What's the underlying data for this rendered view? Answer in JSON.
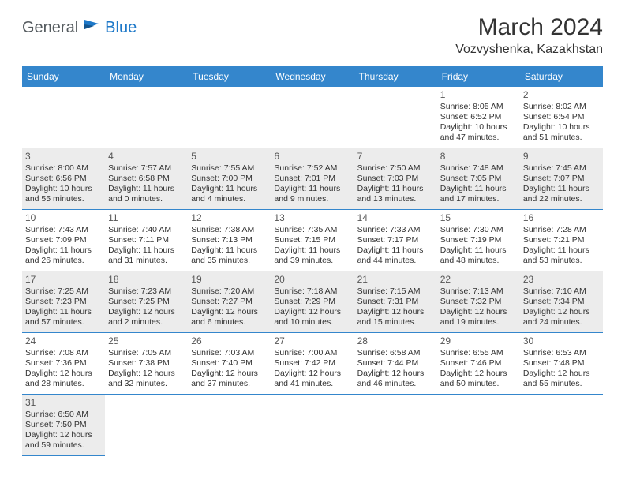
{
  "logo": {
    "general": "General",
    "blue": "Blue"
  },
  "title": "March 2024",
  "location": "Vozvyshenka, Kazakhstan",
  "colors": {
    "header_bg": "#3486cc",
    "header_fg": "#ffffff",
    "alt_row_bg": "#ececec",
    "logo_gray": "#555b5f",
    "logo_blue": "#1d78c8",
    "text": "#333333",
    "border": "#3486cc"
  },
  "weekdays": [
    "Sunday",
    "Monday",
    "Tuesday",
    "Wednesday",
    "Thursday",
    "Friday",
    "Saturday"
  ],
  "weeks": [
    [
      null,
      null,
      null,
      null,
      null,
      {
        "d": "1",
        "sr": "8:05 AM",
        "ss": "6:52 PM",
        "dl": "10 hours and 47 minutes."
      },
      {
        "d": "2",
        "sr": "8:02 AM",
        "ss": "6:54 PM",
        "dl": "10 hours and 51 minutes."
      }
    ],
    [
      {
        "d": "3",
        "sr": "8:00 AM",
        "ss": "6:56 PM",
        "dl": "10 hours and 55 minutes."
      },
      {
        "d": "4",
        "sr": "7:57 AM",
        "ss": "6:58 PM",
        "dl": "11 hours and 0 minutes."
      },
      {
        "d": "5",
        "sr": "7:55 AM",
        "ss": "7:00 PM",
        "dl": "11 hours and 4 minutes."
      },
      {
        "d": "6",
        "sr": "7:52 AM",
        "ss": "7:01 PM",
        "dl": "11 hours and 9 minutes."
      },
      {
        "d": "7",
        "sr": "7:50 AM",
        "ss": "7:03 PM",
        "dl": "11 hours and 13 minutes."
      },
      {
        "d": "8",
        "sr": "7:48 AM",
        "ss": "7:05 PM",
        "dl": "11 hours and 17 minutes."
      },
      {
        "d": "9",
        "sr": "7:45 AM",
        "ss": "7:07 PM",
        "dl": "11 hours and 22 minutes."
      }
    ],
    [
      {
        "d": "10",
        "sr": "7:43 AM",
        "ss": "7:09 PM",
        "dl": "11 hours and 26 minutes."
      },
      {
        "d": "11",
        "sr": "7:40 AM",
        "ss": "7:11 PM",
        "dl": "11 hours and 31 minutes."
      },
      {
        "d": "12",
        "sr": "7:38 AM",
        "ss": "7:13 PM",
        "dl": "11 hours and 35 minutes."
      },
      {
        "d": "13",
        "sr": "7:35 AM",
        "ss": "7:15 PM",
        "dl": "11 hours and 39 minutes."
      },
      {
        "d": "14",
        "sr": "7:33 AM",
        "ss": "7:17 PM",
        "dl": "11 hours and 44 minutes."
      },
      {
        "d": "15",
        "sr": "7:30 AM",
        "ss": "7:19 PM",
        "dl": "11 hours and 48 minutes."
      },
      {
        "d": "16",
        "sr": "7:28 AM",
        "ss": "7:21 PM",
        "dl": "11 hours and 53 minutes."
      }
    ],
    [
      {
        "d": "17",
        "sr": "7:25 AM",
        "ss": "7:23 PM",
        "dl": "11 hours and 57 minutes."
      },
      {
        "d": "18",
        "sr": "7:23 AM",
        "ss": "7:25 PM",
        "dl": "12 hours and 2 minutes."
      },
      {
        "d": "19",
        "sr": "7:20 AM",
        "ss": "7:27 PM",
        "dl": "12 hours and 6 minutes."
      },
      {
        "d": "20",
        "sr": "7:18 AM",
        "ss": "7:29 PM",
        "dl": "12 hours and 10 minutes."
      },
      {
        "d": "21",
        "sr": "7:15 AM",
        "ss": "7:31 PM",
        "dl": "12 hours and 15 minutes."
      },
      {
        "d": "22",
        "sr": "7:13 AM",
        "ss": "7:32 PM",
        "dl": "12 hours and 19 minutes."
      },
      {
        "d": "23",
        "sr": "7:10 AM",
        "ss": "7:34 PM",
        "dl": "12 hours and 24 minutes."
      }
    ],
    [
      {
        "d": "24",
        "sr": "7:08 AM",
        "ss": "7:36 PM",
        "dl": "12 hours and 28 minutes."
      },
      {
        "d": "25",
        "sr": "7:05 AM",
        "ss": "7:38 PM",
        "dl": "12 hours and 32 minutes."
      },
      {
        "d": "26",
        "sr": "7:03 AM",
        "ss": "7:40 PM",
        "dl": "12 hours and 37 minutes."
      },
      {
        "d": "27",
        "sr": "7:00 AM",
        "ss": "7:42 PM",
        "dl": "12 hours and 41 minutes."
      },
      {
        "d": "28",
        "sr": "6:58 AM",
        "ss": "7:44 PM",
        "dl": "12 hours and 46 minutes."
      },
      {
        "d": "29",
        "sr": "6:55 AM",
        "ss": "7:46 PM",
        "dl": "12 hours and 50 minutes."
      },
      {
        "d": "30",
        "sr": "6:53 AM",
        "ss": "7:48 PM",
        "dl": "12 hours and 55 minutes."
      }
    ],
    [
      {
        "d": "31",
        "sr": "6:50 AM",
        "ss": "7:50 PM",
        "dl": "12 hours and 59 minutes."
      },
      null,
      null,
      null,
      null,
      null,
      null
    ]
  ],
  "labels": {
    "sunrise": "Sunrise:",
    "sunset": "Sunset:",
    "daylight": "Daylight:"
  }
}
